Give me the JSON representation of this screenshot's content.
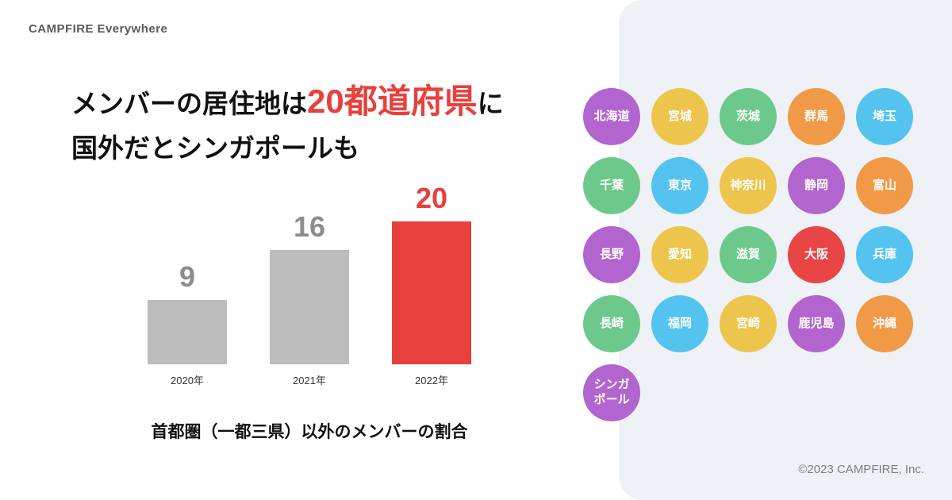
{
  "brand": "CAMPFIRE Everywhere",
  "headline": {
    "pre": "メンバーの居住地は",
    "highlight": "20都道府県",
    "post": "に",
    "line2": "国外だとシンガポールも"
  },
  "chart_data": {
    "type": "bar",
    "categories": [
      "2020年",
      "2021年",
      "2022年"
    ],
    "values": [
      9,
      16,
      20
    ],
    "highlight_index": 2,
    "title": "首都圏（一都三県）以外のメンバーの割合",
    "xlabel": "",
    "ylabel": "",
    "ylim": [
      0,
      20
    ],
    "grid": false,
    "bar_color": "#bcbcbc",
    "highlight_color": "#e8403c",
    "value_label_color": "#8c8c8c"
  },
  "footer": "©2023 CAMPFIRE, Inc.",
  "panel_color": "#eef1f5",
  "palette": {
    "purple": "#b264cf",
    "yellow": "#edc44c",
    "green": "#6cc98b",
    "orange": "#f09a47",
    "blue": "#55c3f0",
    "red": "#ea4545"
  },
  "prefectures": [
    {
      "label": "北海道",
      "color": "purple"
    },
    {
      "label": "宮城",
      "color": "yellow"
    },
    {
      "label": "茨城",
      "color": "green"
    },
    {
      "label": "群馬",
      "color": "orange"
    },
    {
      "label": "埼玉",
      "color": "blue"
    },
    {
      "label": "千葉",
      "color": "green"
    },
    {
      "label": "東京",
      "color": "blue"
    },
    {
      "label": "神奈川",
      "color": "yellow"
    },
    {
      "label": "静岡",
      "color": "purple"
    },
    {
      "label": "富山",
      "color": "orange"
    },
    {
      "label": "長野",
      "color": "purple"
    },
    {
      "label": "愛知",
      "color": "yellow"
    },
    {
      "label": "滋賀",
      "color": "green"
    },
    {
      "label": "大阪",
      "color": "red"
    },
    {
      "label": "兵庫",
      "color": "blue"
    },
    {
      "label": "長崎",
      "color": "green"
    },
    {
      "label": "福岡",
      "color": "blue"
    },
    {
      "label": "宮崎",
      "color": "yellow"
    },
    {
      "label": "鹿児島",
      "color": "purple"
    },
    {
      "label": "沖縄",
      "color": "orange"
    },
    {
      "label": "シンガ\nポール",
      "color": "purple"
    }
  ]
}
